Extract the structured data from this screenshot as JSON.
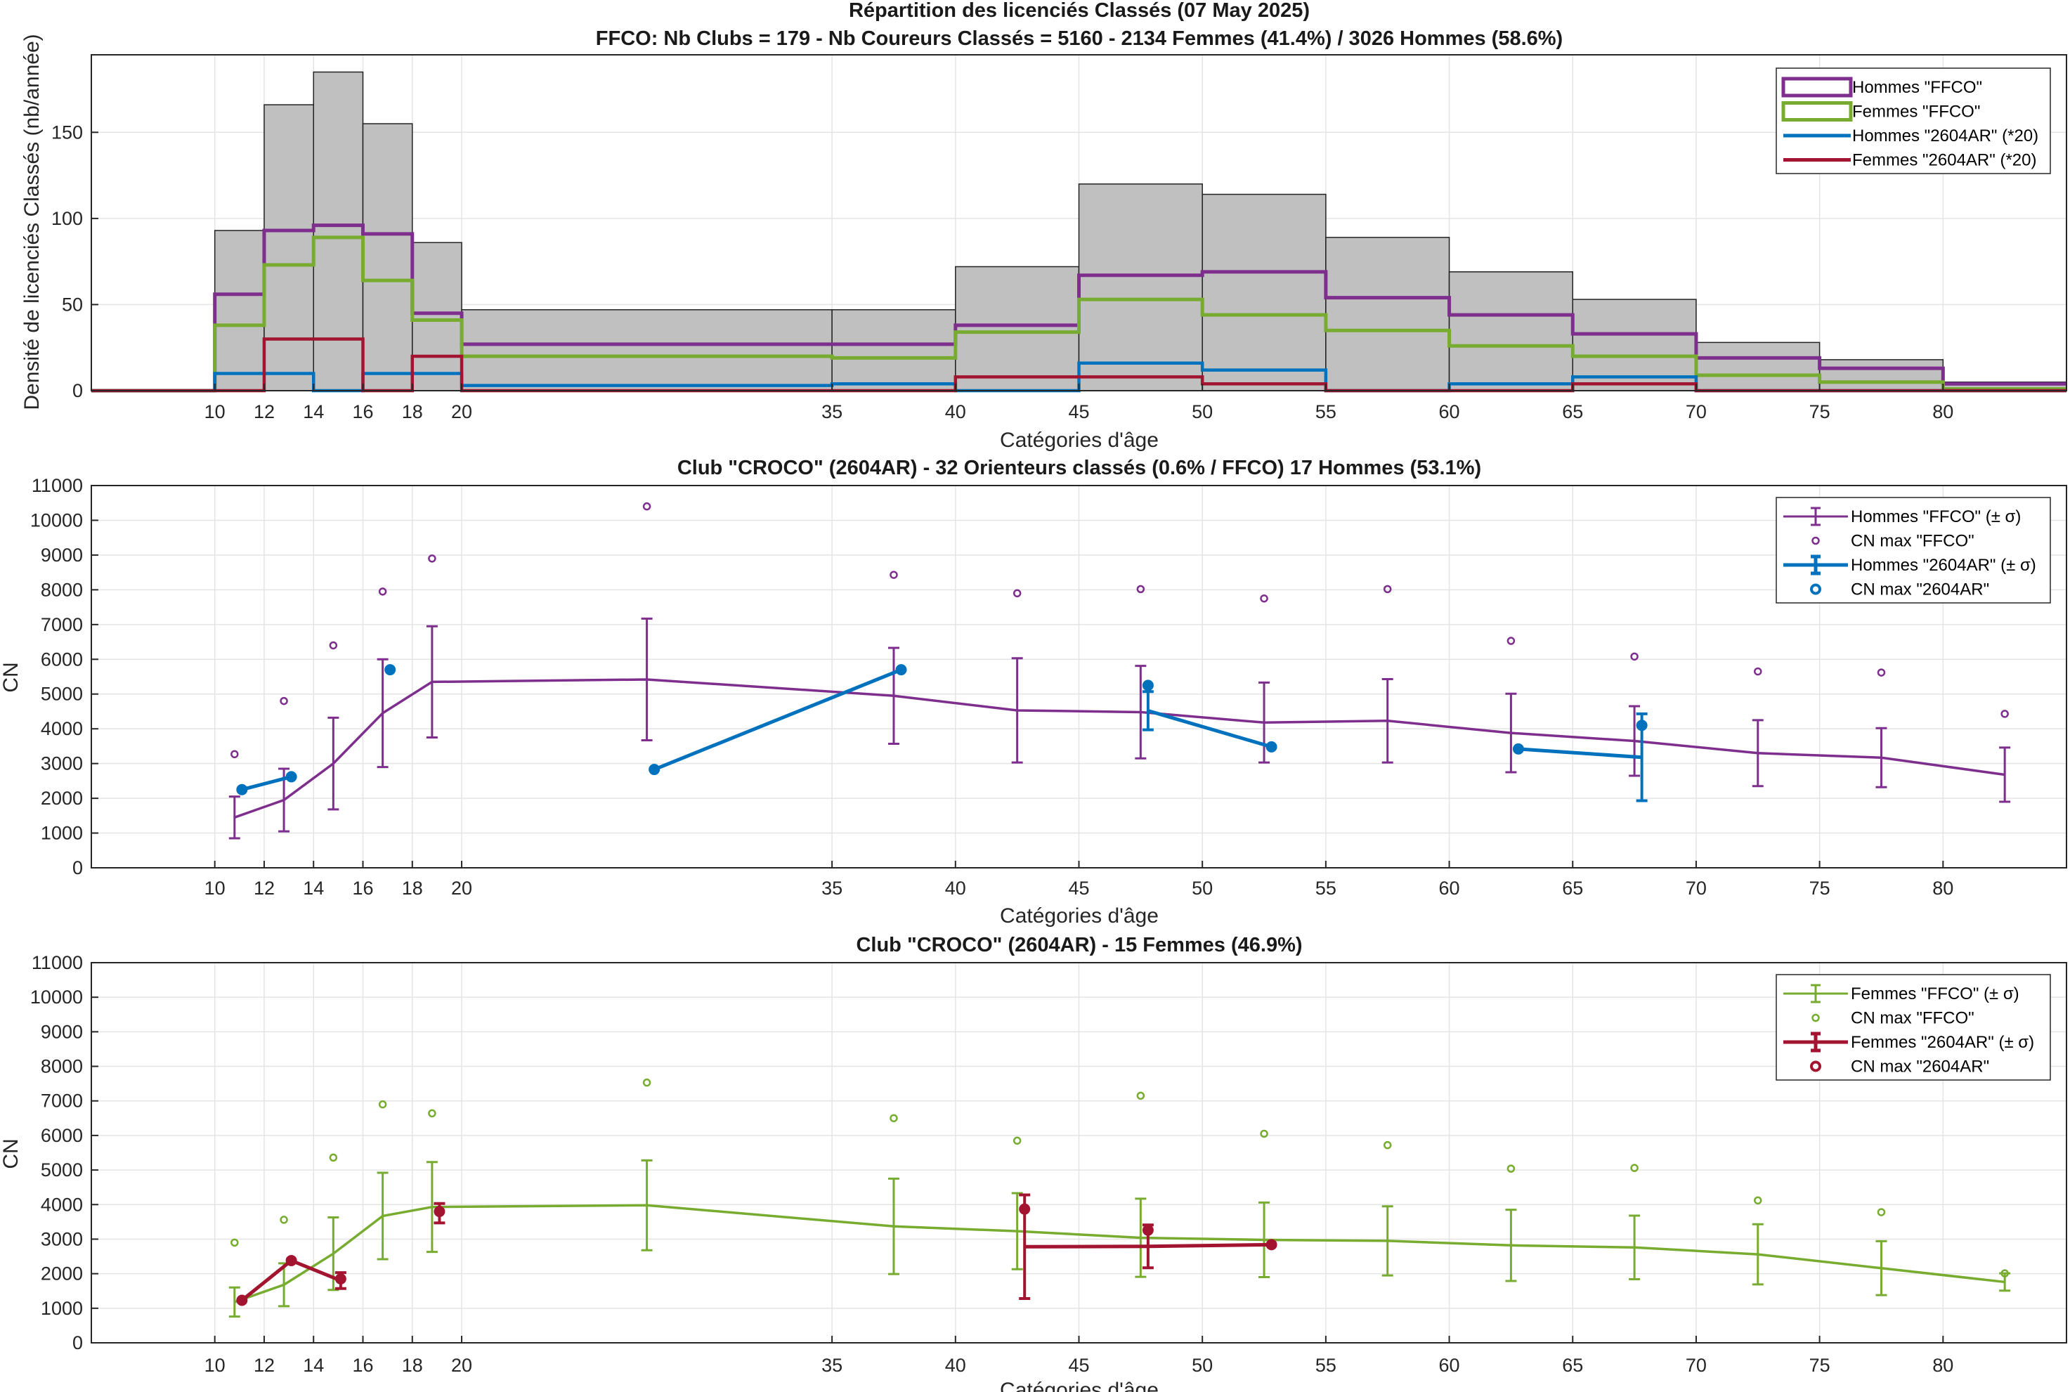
{
  "colors": {
    "hommes_ffco": "#7E2F8E",
    "femmes_ffco": "#77AC30",
    "hommes_club": "#0072BD",
    "femmes_club": "#A2142F",
    "hist_fill": "#C0C0C0"
  },
  "chart_data": [
    {
      "type": "bar",
      "title": "Répartition des licenciés Classés (07 May 2025)",
      "subtitle": "FFCO: Nb Clubs = 179   -   Nb Coureurs Classés = 5160   -   2134 Femmes (41.4%) / 3026 Hommes (58.6%)",
      "xlabel": "Catégories d'âge",
      "ylabel": "Densité de licenciés Classés (nb/année)",
      "xlim": [
        5,
        85
      ],
      "ylim": [
        0,
        195
      ],
      "grid": true,
      "legend_position": "top-right",
      "xticks": [
        10,
        12,
        14,
        16,
        18,
        20,
        35,
        40,
        45,
        50,
        55,
        60,
        65,
        70,
        75,
        80
      ],
      "yticks": [
        0,
        50,
        100,
        150
      ],
      "bin_edges": [
        5,
        10,
        12,
        14,
        16,
        18,
        20,
        35,
        40,
        45,
        50,
        55,
        60,
        65,
        70,
        75,
        80,
        85
      ],
      "total": [
        0,
        93,
        166,
        185,
        155,
        86,
        47,
        47,
        72,
        120,
        114,
        89,
        69,
        53,
        28,
        18,
        5
      ],
      "series": [
        {
          "name": "Hommes \"FFCO\"",
          "values": [
            0,
            56,
            93,
            96,
            91,
            45,
            27,
            27,
            38,
            67,
            69,
            54,
            44,
            33,
            19,
            13,
            4
          ]
        },
        {
          "name": "Femmes \"FFCO\"",
          "values": [
            0,
            38,
            73,
            89,
            64,
            41,
            20,
            19,
            34,
            53,
            44,
            35,
            26,
            20,
            9,
            5,
            1
          ]
        },
        {
          "name": "Hommes \"2604AR\" (*20)",
          "values": [
            0,
            10,
            10,
            0,
            10,
            10,
            3,
            4,
            0,
            16,
            12,
            0,
            4,
            8,
            0,
            0,
            0
          ]
        },
        {
          "name": "Femmes \"2604AR\" (*20)",
          "values": [
            0,
            0,
            30,
            30,
            0,
            20,
            0,
            0,
            8,
            8,
            4,
            0,
            0,
            4,
            0,
            0,
            0
          ]
        }
      ]
    },
    {
      "type": "line",
      "title": "Club \"CROCO\" (2604AR)  -  32 Orienteurs classés (0.6% / FFCO)  17 Hommes (53.1%)",
      "xlabel": "Catégories d'âge",
      "ylabel": "CN",
      "xlim": [
        5,
        85
      ],
      "ylim": [
        0,
        11000
      ],
      "grid": true,
      "legend_position": "top-right",
      "xticks": [
        10,
        12,
        14,
        16,
        18,
        20,
        35,
        40,
        45,
        50,
        55,
        60,
        65,
        70,
        75,
        80
      ],
      "yticks": [
        0,
        1000,
        2000,
        3000,
        4000,
        5000,
        6000,
        7000,
        8000,
        9000,
        10000,
        11000
      ],
      "series": [
        {
          "name": "Hommes \"FFCO\" (± σ)",
          "kind": "errorbar",
          "x": [
            10.8,
            12.8,
            14.8,
            16.8,
            18.8,
            27.5,
            37.5,
            42.5,
            47.5,
            52.5,
            57.5,
            62.5,
            67.5,
            72.5,
            77.5,
            82.5
          ],
          "y": [
            1450,
            1950,
            3000,
            4450,
            5350,
            5420,
            4950,
            4530,
            4480,
            4180,
            4230,
            3880,
            3650,
            3300,
            3170,
            2680
          ],
          "err": [
            600,
            900,
            1320,
            1550,
            1600,
            1750,
            1380,
            1500,
            1330,
            1150,
            1200,
            1130,
            1000,
            950,
            850,
            780
          ]
        },
        {
          "name": "CN max \"FFCO\"",
          "kind": "markers",
          "x": [
            10.8,
            12.8,
            14.8,
            16.8,
            18.8,
            27.5,
            37.5,
            42.5,
            47.5,
            52.5,
            57.5,
            62.5,
            67.5,
            72.5,
            77.5,
            82.5
          ],
          "y": [
            3270,
            4800,
            6400,
            7950,
            8900,
            10400,
            8430,
            7900,
            8020,
            7750,
            8020,
            6530,
            6080,
            5650,
            5620,
            4430
          ]
        },
        {
          "name": "Hommes \"2604AR\" (± σ)",
          "kind": "errorbar",
          "segments": [
            {
              "x": [
                11.1,
                13.1
              ],
              "y": [
                2250,
                2620
              ]
            },
            {
              "x": [
                17.1
              ],
              "y": [
                5700
              ]
            },
            {
              "x": [
                27.8,
                37.8
              ],
              "y": [
                2830,
                5700
              ]
            },
            {
              "x": [
                47.8,
                52.8
              ],
              "y": [
                4520,
                3480
              ]
            },
            {
              "x": [
                62.8,
                67.8
              ],
              "y": [
                3420,
                3180
              ]
            }
          ],
          "errors": [
            {
              "x": 47.8,
              "err": 550
            },
            {
              "x": 67.8,
              "err": 1250
            }
          ]
        },
        {
          "name": "CN max \"2604AR\"",
          "kind": "markers",
          "x": [
            11.1,
            13.1,
            17.1,
            27.8,
            37.8,
            47.8,
            52.8,
            62.8,
            67.8
          ],
          "y": [
            2250,
            2620,
            5700,
            2830,
            5700,
            5250,
            3480,
            3420,
            4100
          ]
        }
      ]
    },
    {
      "type": "line",
      "title": "Club \"CROCO\" (2604AR)  -  15 Femmes (46.9%)",
      "xlabel": "Catégories d'âge",
      "ylabel": "CN",
      "xlim": [
        5,
        85
      ],
      "ylim": [
        0,
        11000
      ],
      "grid": true,
      "legend_position": "top-right",
      "xticks": [
        10,
        12,
        14,
        16,
        18,
        20,
        35,
        40,
        45,
        50,
        55,
        60,
        65,
        70,
        75,
        80
      ],
      "yticks": [
        0,
        1000,
        2000,
        3000,
        4000,
        5000,
        6000,
        7000,
        8000,
        9000,
        10000,
        11000
      ],
      "series": [
        {
          "name": "Femmes \"FFCO\" (± σ)",
          "kind": "errorbar",
          "x": [
            10.8,
            12.8,
            14.8,
            16.8,
            18.8,
            27.5,
            37.5,
            42.5,
            47.5,
            52.5,
            57.5,
            62.5,
            67.5,
            72.5,
            77.5,
            82.5
          ],
          "y": [
            1180,
            1680,
            2580,
            3670,
            3930,
            3980,
            3370,
            3230,
            3040,
            2980,
            2950,
            2820,
            2760,
            2560,
            2160,
            1760
          ],
          "err": [
            420,
            620,
            1050,
            1250,
            1300,
            1300,
            1380,
            1100,
            1130,
            1080,
            1000,
            1030,
            920,
            870,
            780,
            250
          ]
        },
        {
          "name": "CN max \"FFCO\"",
          "kind": "markers",
          "x": [
            10.8,
            12.8,
            14.8,
            16.8,
            18.8,
            27.5,
            37.5,
            42.5,
            47.5,
            52.5,
            57.5,
            62.5,
            67.5,
            72.5,
            77.5,
            82.5
          ],
          "y": [
            2900,
            3560,
            5360,
            6900,
            6640,
            7530,
            6500,
            5850,
            7150,
            6050,
            5720,
            5040,
            5060,
            4120,
            3780,
            2010
          ]
        },
        {
          "name": "Femmes \"2604AR\" (± σ)",
          "kind": "errorbar",
          "segments": [
            {
              "x": [
                11.1,
                13.1,
                15.1
              ],
              "y": [
                1230,
                2380,
                1800
              ]
            },
            {
              "x": [
                19.1
              ],
              "y": [
                3750
              ]
            },
            {
              "x": [
                42.8,
                47.8,
                52.8
              ],
              "y": [
                2780,
                2790,
                2840
              ]
            }
          ],
          "errors": [
            {
              "x": 15.1,
              "err": 230
            },
            {
              "x": 19.1,
              "err": 280
            },
            {
              "x": 42.8,
              "err": 1500
            },
            {
              "x": 47.8,
              "err": 620
            }
          ]
        },
        {
          "name": "CN max \"2604AR\"",
          "kind": "markers",
          "x": [
            11.1,
            13.1,
            15.1,
            19.1,
            42.8,
            47.8,
            52.8
          ],
          "y": [
            1230,
            2380,
            1850,
            3800,
            3870,
            3260,
            2840
          ]
        }
      ]
    }
  ]
}
